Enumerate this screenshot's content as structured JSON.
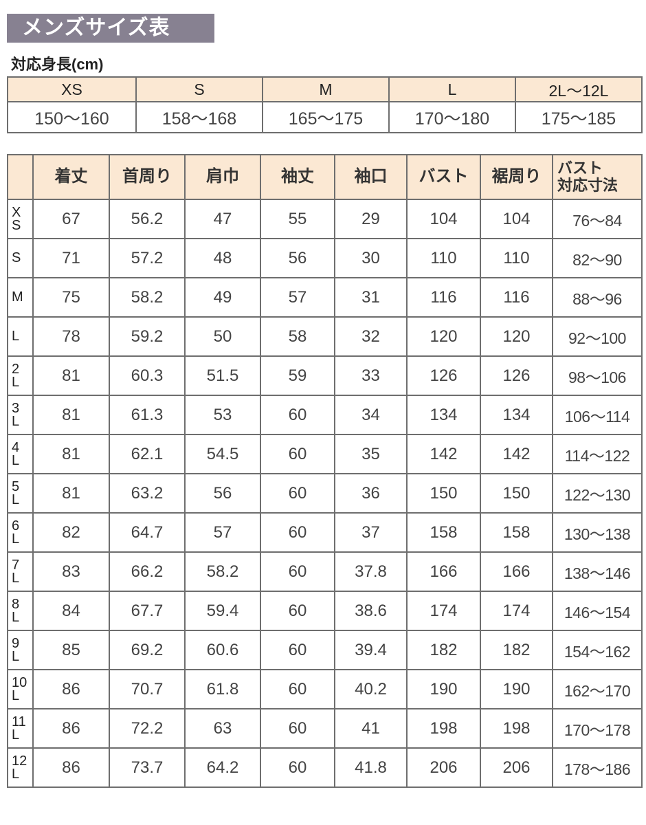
{
  "title": "メンズサイズ表",
  "height_section": {
    "label": "対応身長(cm)",
    "sizes": [
      "XS",
      "S",
      "M",
      "L",
      "2L〜12L"
    ],
    "ranges": [
      "150〜160",
      "158〜168",
      "165〜175",
      "170〜180",
      "175〜185"
    ]
  },
  "size_table": {
    "headers": [
      "",
      "着丈",
      "首周り",
      "肩巾",
      "袖丈",
      "袖口",
      "バスト",
      "裾周り",
      "バスト\n対応寸法"
    ],
    "header_last_line1": "バスト",
    "header_last_line2": "対応寸法",
    "rows": [
      {
        "size": "XS",
        "values": [
          "67",
          "56.2",
          "47",
          "55",
          "29",
          "104",
          "104",
          "76〜84"
        ]
      },
      {
        "size": "S",
        "values": [
          "71",
          "57.2",
          "48",
          "56",
          "30",
          "110",
          "110",
          "82〜90"
        ]
      },
      {
        "size": "M",
        "values": [
          "75",
          "58.2",
          "49",
          "57",
          "31",
          "116",
          "116",
          "88〜96"
        ]
      },
      {
        "size": "L",
        "values": [
          "78",
          "59.2",
          "50",
          "58",
          "32",
          "120",
          "120",
          "92〜100"
        ]
      },
      {
        "size": "2L",
        "values": [
          "81",
          "60.3",
          "51.5",
          "59",
          "33",
          "126",
          "126",
          "98〜106"
        ]
      },
      {
        "size": "3L",
        "values": [
          "81",
          "61.3",
          "53",
          "60",
          "34",
          "134",
          "134",
          "106〜114"
        ]
      },
      {
        "size": "4L",
        "values": [
          "81",
          "62.1",
          "54.5",
          "60",
          "35",
          "142",
          "142",
          "114〜122"
        ]
      },
      {
        "size": "5L",
        "values": [
          "81",
          "63.2",
          "56",
          "60",
          "36",
          "150",
          "150",
          "122〜130"
        ]
      },
      {
        "size": "6L",
        "values": [
          "82",
          "64.7",
          "57",
          "60",
          "37",
          "158",
          "158",
          "130〜138"
        ]
      },
      {
        "size": "7L",
        "values": [
          "83",
          "66.2",
          "58.2",
          "60",
          "37.8",
          "166",
          "166",
          "138〜146"
        ]
      },
      {
        "size": "8L",
        "values": [
          "84",
          "67.7",
          "59.4",
          "60",
          "38.6",
          "174",
          "174",
          "146〜154"
        ]
      },
      {
        "size": "9L",
        "values": [
          "85",
          "69.2",
          "60.6",
          "60",
          "39.4",
          "182",
          "182",
          "154〜162"
        ]
      },
      {
        "size": "10L",
        "values": [
          "86",
          "70.7",
          "61.8",
          "60",
          "40.2",
          "190",
          "190",
          "162〜170"
        ]
      },
      {
        "size": "11L",
        "values": [
          "86",
          "72.2",
          "63",
          "60",
          "41",
          "198",
          "198",
          "170〜178"
        ]
      },
      {
        "size": "12L",
        "values": [
          "86",
          "73.7",
          "64.2",
          "60",
          "41.8",
          "206",
          "206",
          "178〜186"
        ]
      }
    ]
  },
  "colors": {
    "title_bg": "#878191",
    "header_bg": "#fbe8d3",
    "border": "#6e6e6e"
  }
}
